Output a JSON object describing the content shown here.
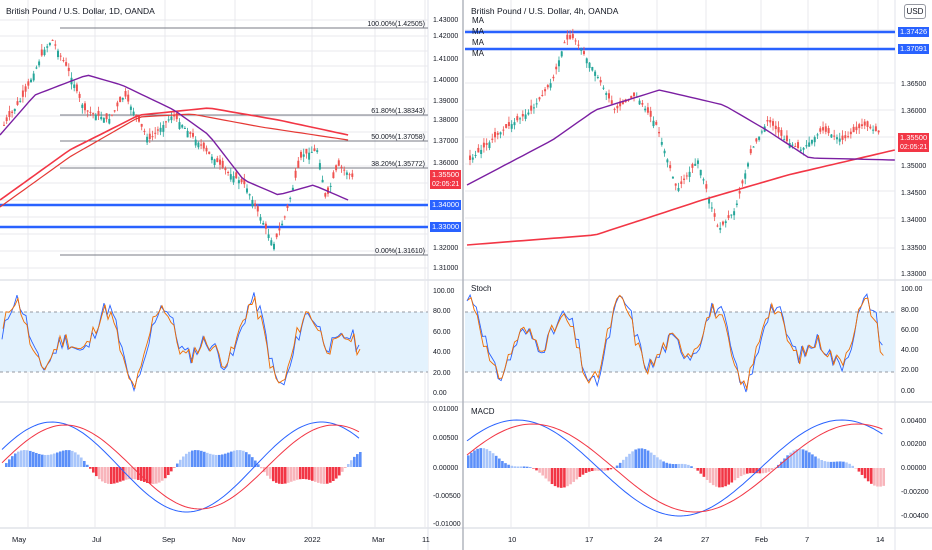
{
  "colors": {
    "red": "#f23645",
    "blue": "#2962ff",
    "purple": "#7b1fa2",
    "grid": "#e9e9ee",
    "up": "#26a69a",
    "down": "#ef5350",
    "macd_pos": "#5b8ff9",
    "macd_pos_light": "#a9c6fb",
    "macd_neg": "#f23645",
    "macd_neg_light": "#f8b5bb",
    "band": "#e3f2fd"
  },
  "left": {
    "title": "British Pound / U.S. Dollar, 1D, OANDA",
    "price_axis": [
      "1.43000",
      "1.42000",
      "1.41000",
      "1.40000",
      "1.39000",
      "1.38000",
      "1.37000",
      "1.36000",
      "1.33000",
      "1.32000",
      "1.31000"
    ],
    "fib": [
      {
        "label": "100.00%(1.42505)"
      },
      {
        "label": "61.80%(1.38343)"
      },
      {
        "label": "50.00%(1.37058)"
      },
      {
        "label": "38.20%(1.35772)"
      },
      {
        "label": "0.00%(1.31610)"
      }
    ],
    "price_tags": {
      "support_1": "1.34000",
      "support_2": "1.33000",
      "last": "1.35500",
      "countdown": "02:05:21"
    },
    "stoch_axis": [
      "100.00",
      "80.00",
      "60.00",
      "40.00",
      "20.00",
      "0.00"
    ],
    "macd_axis": [
      "0.01000",
      "0.00500",
      "0.00000",
      "-0.00500",
      "-0.01000"
    ],
    "time_axis": [
      "May",
      "Jul",
      "Sep",
      "Nov",
      "2022",
      "Mar",
      "11"
    ]
  },
  "right": {
    "title": "British Pound / U.S. Dollar, 4h, OANDA",
    "ma_labels": [
      "MA",
      "MA",
      "MA",
      "MA"
    ],
    "currency_button": "USD",
    "price_axis": [
      "1.36500",
      "1.36000",
      "1.35500",
      "1.35000",
      "1.34500",
      "1.34000",
      "1.33500",
      "1.33000"
    ],
    "price_tags": {
      "res_1": "1.37426",
      "res_2": "1.37091",
      "last": "1.35500",
      "countdown": "02:05:21"
    },
    "stoch_label": "Stoch",
    "stoch_axis": [
      "100.00",
      "80.00",
      "60.00",
      "40.00",
      "20.00",
      "0.00"
    ],
    "macd_label": "MACD",
    "macd_axis": [
      "0.00400",
      "0.00200",
      "0.00000",
      "-0.00200",
      "-0.00400"
    ],
    "time_axis": [
      "10",
      "17",
      "24",
      "27",
      "Feb",
      "7",
      "14"
    ]
  }
}
